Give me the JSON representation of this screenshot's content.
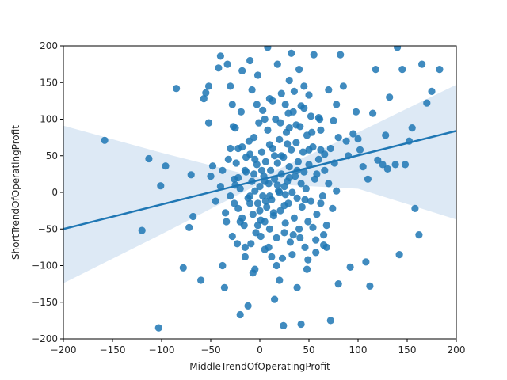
{
  "chart_data": {
    "type": "scatter",
    "title": "",
    "xlabel": "MiddleTrendOfOperatingProfit",
    "ylabel": "ShortTrendOfOperatingProfit",
    "xlim": [
      -200,
      200
    ],
    "ylim": [
      -200,
      200
    ],
    "xticks": [
      -200,
      -150,
      -100,
      -50,
      0,
      50,
      100,
      150,
      200
    ],
    "yticks": [
      -200,
      -150,
      -100,
      -50,
      0,
      50,
      100,
      150,
      200
    ],
    "grid": false,
    "legend": "none",
    "point_color": "#1f77b4",
    "band_color": "#c6dbef",
    "regression": {
      "intercept": 17,
      "slope": 0.335,
      "ci_upper": [
        [
          -200,
          91
        ],
        [
          -100,
          54
        ],
        [
          0,
          20
        ],
        [
          100,
          82
        ],
        [
          200,
          147
        ]
      ],
      "ci_lower": [
        [
          -200,
          -124
        ],
        [
          -100,
          -57
        ],
        [
          0,
          12
        ],
        [
          100,
          5
        ],
        [
          200,
          -37
        ]
      ]
    },
    "series": [
      {
        "marker": "circle",
        "points": [
          [
            -158,
            71
          ],
          [
            -120,
            -52
          ],
          [
            -113,
            46
          ],
          [
            -101,
            9
          ],
          [
            -96,
            36
          ],
          [
            -85,
            142
          ],
          [
            -103,
            -185
          ],
          [
            -78,
            -103
          ],
          [
            -70,
            24
          ],
          [
            -68,
            -33
          ],
          [
            -72,
            -48
          ],
          [
            -60,
            -120
          ],
          [
            -57,
            128
          ],
          [
            -55,
            136
          ],
          [
            -52,
            145
          ],
          [
            -52,
            95
          ],
          [
            -48,
            36
          ],
          [
            -42,
            170
          ],
          [
            -40,
            186
          ],
          [
            -38,
            -100
          ],
          [
            -36,
            -130
          ],
          [
            -33,
            175
          ],
          [
            -30,
            145
          ],
          [
            -28,
            120
          ],
          [
            -25,
            88
          ],
          [
            -22,
            60
          ],
          [
            -20,
            -167
          ],
          [
            -18,
            166
          ],
          [
            -15,
            -75
          ],
          [
            -12,
            -155
          ],
          [
            -10,
            180
          ],
          [
            -8,
            140
          ],
          [
            -5,
            -105
          ],
          [
            -2,
            160
          ],
          [
            3,
            112
          ],
          [
            5,
            -40
          ],
          [
            8,
            198
          ],
          [
            10,
            128
          ],
          [
            12,
            -88
          ],
          [
            15,
            -146
          ],
          [
            18,
            175
          ],
          [
            20,
            -120
          ],
          [
            22,
            135
          ],
          [
            24,
            -182
          ],
          [
            26,
            120
          ],
          [
            28,
            66
          ],
          [
            30,
            153
          ],
          [
            32,
            190
          ],
          [
            35,
            138
          ],
          [
            38,
            -130
          ],
          [
            40,
            168
          ],
          [
            42,
            -180
          ],
          [
            45,
            145
          ],
          [
            48,
            -105
          ],
          [
            50,
            133
          ],
          [
            52,
            104
          ],
          [
            55,
            188
          ],
          [
            57,
            -82
          ],
          [
            60,
            102
          ],
          [
            62,
            58
          ],
          [
            65,
            -58
          ],
          [
            68,
            -75
          ],
          [
            70,
            140
          ],
          [
            72,
            -175
          ],
          [
            75,
            98
          ],
          [
            78,
            120
          ],
          [
            80,
            -125
          ],
          [
            82,
            188
          ],
          [
            85,
            145
          ],
          [
            88,
            70
          ],
          [
            90,
            50
          ],
          [
            92,
            -102
          ],
          [
            95,
            80
          ],
          [
            98,
            110
          ],
          [
            100,
            73
          ],
          [
            102,
            58
          ],
          [
            105,
            35
          ],
          [
            108,
            -95
          ],
          [
            110,
            18
          ],
          [
            112,
            -128
          ],
          [
            115,
            108
          ],
          [
            118,
            168
          ],
          [
            120,
            44
          ],
          [
            125,
            38
          ],
          [
            128,
            78
          ],
          [
            130,
            32
          ],
          [
            132,
            130
          ],
          [
            138,
            38
          ],
          [
            140,
            198
          ],
          [
            142,
            -85
          ],
          [
            145,
            168
          ],
          [
            148,
            38
          ],
          [
            152,
            70
          ],
          [
            155,
            88
          ],
          [
            158,
            -22
          ],
          [
            162,
            -58
          ],
          [
            165,
            175
          ],
          [
            170,
            122
          ],
          [
            175,
            138
          ],
          [
            183,
            168
          ],
          [
            -50,
            22
          ],
          [
            -45,
            -12
          ],
          [
            -40,
            8
          ],
          [
            -35,
            -28
          ],
          [
            -32,
            45
          ],
          [
            -28,
            -60
          ],
          [
            -26,
            18
          ],
          [
            -24,
            40
          ],
          [
            -22,
            -22
          ],
          [
            -20,
            5
          ],
          [
            -18,
            62
          ],
          [
            -16,
            -45
          ],
          [
            -14,
            28
          ],
          [
            -12,
            -8
          ],
          [
            -10,
            52
          ],
          [
            -9,
            -70
          ],
          [
            -8,
            15
          ],
          [
            -7,
            -30
          ],
          [
            -6,
            75
          ],
          [
            -5,
            2
          ],
          [
            -4,
            -55
          ],
          [
            -3,
            38
          ],
          [
            -2,
            -15
          ],
          [
            -1,
            95
          ],
          [
            0,
            8
          ],
          [
            1,
            -38
          ],
          [
            2,
            55
          ],
          [
            3,
            -5
          ],
          [
            4,
            22
          ],
          [
            5,
            -78
          ],
          [
            6,
            42
          ],
          [
            7,
            -20
          ],
          [
            8,
            85
          ],
          [
            9,
            12
          ],
          [
            10,
            -50
          ],
          [
            11,
            30
          ],
          [
            12,
            -10
          ],
          [
            13,
            60
          ],
          [
            14,
            -32
          ],
          [
            15,
            18
          ],
          [
            16,
            100
          ],
          [
            17,
            -62
          ],
          [
            18,
            40
          ],
          [
            19,
            2
          ],
          [
            20,
            72
          ],
          [
            21,
            -25
          ],
          [
            22,
            25
          ],
          [
            23,
            -90
          ],
          [
            24,
            48
          ],
          [
            25,
            8
          ],
          [
            26,
            -42
          ],
          [
            27,
            82
          ],
          [
            28,
            15
          ],
          [
            29,
            -15
          ],
          [
            30,
            35
          ],
          [
            31,
            -68
          ],
          [
            32,
            58
          ],
          [
            33,
            0
          ],
          [
            34,
            110
          ],
          [
            35,
            -35
          ],
          [
            36,
            22
          ],
          [
            37,
            68
          ],
          [
            38,
            -8
          ],
          [
            39,
            42
          ],
          [
            40,
            -50
          ],
          [
            41,
            90
          ],
          [
            42,
            12
          ],
          [
            43,
            -20
          ],
          [
            44,
            55
          ],
          [
            45,
            28
          ],
          [
            46,
            -75
          ],
          [
            47,
            5
          ],
          [
            48,
            78
          ],
          [
            49,
            -40
          ],
          [
            50,
            38
          ],
          [
            52,
            -12
          ],
          [
            54,
            62
          ],
          [
            56,
            18
          ],
          [
            58,
            -30
          ],
          [
            60,
            45
          ],
          [
            62,
            85
          ],
          [
            64,
            -5
          ],
          [
            66,
            30
          ],
          [
            68,
            -45
          ],
          [
            70,
            12
          ],
          [
            72,
            60
          ],
          [
            74,
            -22
          ],
          [
            76,
            40
          ],
          [
            78,
            2
          ],
          [
            80,
            75
          ],
          [
            -30,
            -5
          ],
          [
            -25,
            10
          ],
          [
            -20,
            -40
          ],
          [
            -15,
            30
          ],
          [
            -10,
            -15
          ],
          [
            -5,
            45
          ],
          [
            0,
            -25
          ],
          [
            5,
            15
          ],
          [
            10,
            -5
          ],
          [
            15,
            50
          ],
          [
            20,
            0
          ],
          [
            25,
            -18
          ],
          [
            30,
            20
          ],
          [
            -38,
            30
          ],
          [
            -34,
            -40
          ],
          [
            -30,
            60
          ],
          [
            -26,
            -15
          ],
          [
            -22,
            20
          ],
          [
            -18,
            -35
          ],
          [
            -14,
            48
          ],
          [
            -10,
            -5
          ],
          [
            -6,
            25
          ],
          [
            -2,
            -45
          ],
          [
            2,
            30
          ],
          [
            6,
            -12
          ],
          [
            10,
            65
          ],
          [
            14,
            -28
          ],
          [
            18,
            10
          ],
          [
            22,
            50
          ],
          [
            26,
            -3
          ],
          [
            30,
            88
          ],
          [
            34,
            -58
          ],
          [
            38,
            30
          ],
          [
            42,
            118
          ],
          [
            46,
            -10
          ],
          [
            50,
            58
          ],
          [
            54,
            -48
          ],
          [
            58,
            25
          ],
          [
            62,
            -15
          ],
          [
            66,
            52
          ],
          [
            -27,
            90
          ],
          [
            -23,
            -70
          ],
          [
            -19,
            110
          ],
          [
            -15,
            -88
          ],
          [
            -11,
            70
          ],
          [
            -7,
            -110
          ],
          [
            -3,
            120
          ],
          [
            1,
            -60
          ],
          [
            5,
            100
          ],
          [
            9,
            -75
          ],
          [
            13,
            125
          ],
          [
            17,
            -100
          ],
          [
            21,
            95
          ],
          [
            25,
            -55
          ],
          [
            29,
            108
          ],
          [
            33,
            -85
          ],
          [
            37,
            92
          ],
          [
            41,
            -62
          ],
          [
            45,
            115
          ],
          [
            49,
            -92
          ],
          [
            53,
            82
          ],
          [
            57,
            -65
          ],
          [
            61,
            100
          ],
          [
            65,
            -72
          ]
        ]
      }
    ]
  }
}
